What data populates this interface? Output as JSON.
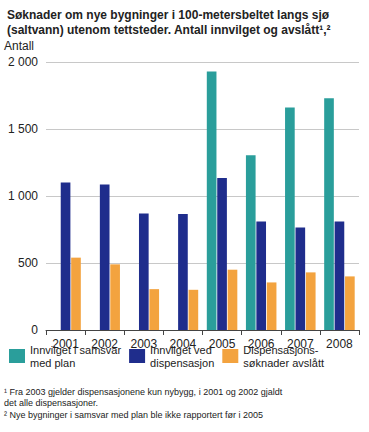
{
  "chart_data": {
    "type": "bar",
    "title": "Søknader om nye bygninger i 100-metersbeltet langs sjø (saltvann) utenom tettsteder. Antall innvilget og avslått¹,²",
    "y_label": "Antall",
    "categories": [
      "2001",
      "2002",
      "2003",
      "2004",
      "2005",
      "2006",
      "2007",
      "2008"
    ],
    "series": [
      {
        "name": "Innvilget i samsvar\nmed plan",
        "color": "#2a9e9b",
        "values": [
          null,
          null,
          null,
          null,
          1930,
          1305,
          1660,
          1730
        ]
      },
      {
        "name": "Innvilget ved\ndispensasjon",
        "color": "#1f2d8c",
        "values": [
          1100,
          1085,
          870,
          865,
          1135,
          810,
          765,
          810
        ]
      },
      {
        "name": "Dispensasjons-\nsøknader avslått",
        "color": "#f3a33f",
        "values": [
          540,
          490,
          305,
          300,
          450,
          355,
          430,
          400
        ]
      }
    ],
    "ylim": [
      0,
      2000
    ],
    "yticks": [
      0,
      500,
      {
        "value": 1000,
        "label": "1 000"
      },
      {
        "value": 1500,
        "label": "1 500"
      },
      {
        "value": 2000,
        "label": "2 000"
      }
    ],
    "grid": true,
    "legend": "bottom",
    "notes": [
      "¹ Fra 2003 gjelder dispensasjonene kun nybygg, i 2001 og 2002 gjaldt det alle dispensasjoner.",
      "² Nye bygninger i samsvar med plan ble ikke rapportert før i 2005"
    ]
  }
}
